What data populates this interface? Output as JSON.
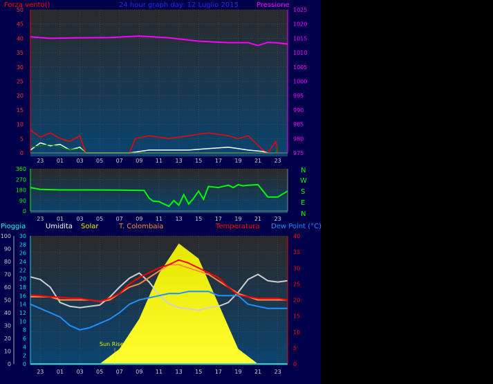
{
  "colors": {
    "background": "#000000",
    "dashboard_bg": "#00004a",
    "plot_top": "#2a2a2a",
    "plot_bottom": "#0a4470",
    "wind": "#ff0000",
    "gust": "#ffffff",
    "windrun": "#008000",
    "pressure": "#ff00ff",
    "direction": "#00ff00",
    "humidity": "#d0d0d0",
    "solar": "#f0f000",
    "t_colombaia": "#ff8844",
    "temperature": "#ff0000",
    "dew_point": "#1e90ff",
    "rain": "#00ffff"
  },
  "header": {
    "left": "Forza vento()",
    "center": "24 hour graph day: 12 Luglio 2015",
    "right": "Pressione"
  },
  "middle": {
    "compass": [
      "N",
      "W",
      "S",
      "E",
      "N"
    ]
  },
  "legend": {
    "pioggia": "Pioggia",
    "umidita": "Umidita",
    "solar": "Solar",
    "t_colombaia": "T. Colombaia",
    "temperatura": "Temperatura",
    "dew_point": "Dew Point (°C)"
  },
  "annotation": {
    "sun_rise": "Sun Rise"
  },
  "chart_data": [
    {
      "type": "line",
      "x_ticks": [
        "23",
        "01",
        "03",
        "05",
        "07",
        "09",
        "11",
        "13",
        "15",
        "17",
        "19",
        "21",
        "23"
      ],
      "y_left_ticks": [
        "0",
        "5",
        "10",
        "15",
        "20",
        "25",
        "30",
        "35",
        "40",
        "45",
        "50"
      ],
      "y_left_lim": [
        0,
        50
      ],
      "y_right_ticks": [
        "975",
        "980",
        "985",
        "990",
        "995",
        "1000",
        "1005",
        "1010",
        "1015",
        "1020",
        "1025"
      ],
      "y_right_lim": [
        975,
        1025
      ],
      "series": [
        {
          "name": "Pressione",
          "axis": "right",
          "x": [
            22,
            24,
            27,
            30,
            33,
            36,
            39,
            42,
            44,
            45,
            46,
            47,
            48
          ],
          "values": [
            1015.5,
            1015.0,
            1015.2,
            1015.3,
            1015.8,
            1015.2,
            1014.0,
            1013.5,
            1013.5,
            1012.5,
            1013.6,
            1013.4,
            1013.0
          ]
        },
        {
          "axis": "left",
          "x": [
            22,
            23,
            24,
            25,
            26,
            27,
            27.6,
            32,
            32.6,
            34,
            36,
            38,
            40,
            42,
            43,
            44,
            45.5,
            46,
            46.8,
            47
          ],
          "values": [
            8,
            5.5,
            7,
            5,
            4,
            6,
            0,
            0,
            5,
            6,
            5,
            6,
            7,
            6,
            5,
            6,
            1,
            0,
            4,
            0
          ]
        },
        {
          "axis": "left",
          "x": [
            22,
            23,
            24,
            25,
            26,
            27,
            27.6,
            32,
            34,
            36,
            38,
            40,
            42,
            43,
            44,
            45.5,
            46
          ],
          "values": [
            1,
            3.5,
            2.5,
            3,
            1,
            2,
            0,
            0,
            1,
            1,
            1,
            1.5,
            2,
            1.5,
            1,
            0.5,
            0
          ]
        },
        {
          "axis": "left",
          "x": [
            22,
            23,
            24,
            25,
            26,
            27,
            27.6,
            46.8,
            47
          ],
          "values": [
            2,
            2.5,
            3,
            2,
            1,
            1.5,
            0,
            0,
            2
          ]
        }
      ]
    },
    {
      "type": "line",
      "x_ticks": [
        "23",
        "01",
        "03",
        "05",
        "07",
        "09",
        "11",
        "13",
        "15",
        "17",
        "19",
        "21",
        "23"
      ],
      "y_ticks": [
        "0",
        "90",
        "180",
        "270",
        "360"
      ],
      "ylim": [
        0,
        360
      ],
      "series": [
        {
          "x": [
            22,
            23,
            25,
            28,
            31,
            33.5,
            34,
            34.4,
            35,
            35.5,
            36,
            36.5,
            37,
            37.5,
            38,
            38.5,
            39,
            39.5,
            40,
            41,
            42,
            42.5,
            43,
            43.5,
            44,
            45,
            46,
            47,
            48
          ],
          "values": [
            200,
            185,
            180,
            180,
            178,
            176,
            110,
            85,
            80,
            60,
            40,
            90,
            50,
            140,
            60,
            110,
            170,
            100,
            210,
            200,
            220,
            200,
            225,
            215,
            220,
            225,
            120,
            120,
            170
          ]
        }
      ]
    },
    {
      "type": "line",
      "x_ticks": [
        "23",
        "01",
        "03",
        "05",
        "07",
        "09",
        "11",
        "13",
        "15",
        "17",
        "19",
        "21",
        "23"
      ],
      "y_pioggia_ticks": [
        "0",
        "10",
        "20",
        "30",
        "40",
        "50",
        "60",
        "70",
        "80",
        "90",
        "100"
      ],
      "y_left_ticks": [
        "0",
        "2",
        "4",
        "6",
        "8",
        "10",
        "12",
        "14",
        "16",
        "18",
        "20",
        "22",
        "24",
        "26",
        "28",
        "30"
      ],
      "y_right_ticks": [
        "0",
        "5",
        "10",
        "15",
        "20",
        "25",
        "30",
        "35",
        "40"
      ],
      "ylim": [
        0,
        40
      ],
      "series": [
        {
          "name": "Umidita",
          "x": [
            22,
            23,
            24,
            25,
            26,
            27,
            28,
            29,
            30,
            31,
            32,
            33,
            34,
            35,
            36,
            37,
            38,
            39,
            40,
            41,
            42,
            43,
            44,
            45,
            46,
            47,
            48
          ],
          "values": [
            68,
            66,
            60,
            48,
            45,
            44,
            45,
            46,
            52,
            60,
            67,
            71,
            64,
            54,
            47,
            44,
            43,
            42,
            44,
            45,
            48,
            56,
            66,
            70,
            65,
            64,
            65
          ]
        },
        {
          "name": "Solar",
          "x": [
            27,
            29,
            31,
            33,
            35,
            37,
            39,
            41,
            43,
            45
          ],
          "values": [
            0,
            0,
            100,
            300,
            600,
            800,
            700,
            400,
            100,
            0
          ]
        },
        {
          "name": "T. Colombaia",
          "x": [
            22,
            23,
            24,
            25,
            26,
            27,
            28,
            29,
            30,
            31,
            32,
            33,
            34,
            35,
            36,
            37,
            38,
            39,
            40,
            41,
            42,
            43,
            44,
            45,
            46,
            47,
            48
          ],
          "values": [
            21,
            21,
            21,
            20,
            20,
            20,
            20,
            19.5,
            20,
            22,
            24,
            25,
            27,
            29,
            31,
            31,
            30,
            29,
            28,
            26,
            24,
            22,
            21,
            20,
            20,
            20,
            20
          ]
        },
        {
          "name": "Temperatura",
          "x": [
            22,
            23,
            24,
            25,
            26,
            27,
            28,
            29,
            30,
            31,
            32,
            33,
            34,
            35,
            36,
            37,
            38,
            39,
            40,
            41,
            42,
            43,
            44,
            45,
            46,
            47,
            48
          ],
          "values": [
            21.5,
            21.3,
            21,
            20.8,
            20.6,
            20.5,
            20,
            19.5,
            20.5,
            22,
            25,
            27,
            28.5,
            30,
            31,
            32.5,
            31.5,
            30,
            28.5,
            27,
            24,
            21.5,
            21,
            20.5,
            20.5,
            20.5,
            20
          ]
        },
        {
          "name": "Dew Point",
          "x": [
            22,
            23,
            24,
            25,
            26,
            27,
            28,
            29,
            30,
            31,
            32,
            33,
            34,
            35,
            36,
            37,
            38,
            39,
            40,
            41,
            42,
            43,
            44,
            45,
            46,
            47,
            48
          ],
          "values": [
            14,
            13,
            12,
            11,
            9,
            8,
            8.5,
            9.5,
            10.5,
            12,
            14,
            15,
            15.5,
            16,
            16.5,
            16.5,
            17,
            17,
            17,
            16,
            16,
            16,
            14,
            13.5,
            13,
            13,
            13
          ]
        },
        {
          "name": "Pioggia",
          "x": [
            22,
            48
          ],
          "values": [
            0,
            0
          ]
        }
      ]
    }
  ]
}
